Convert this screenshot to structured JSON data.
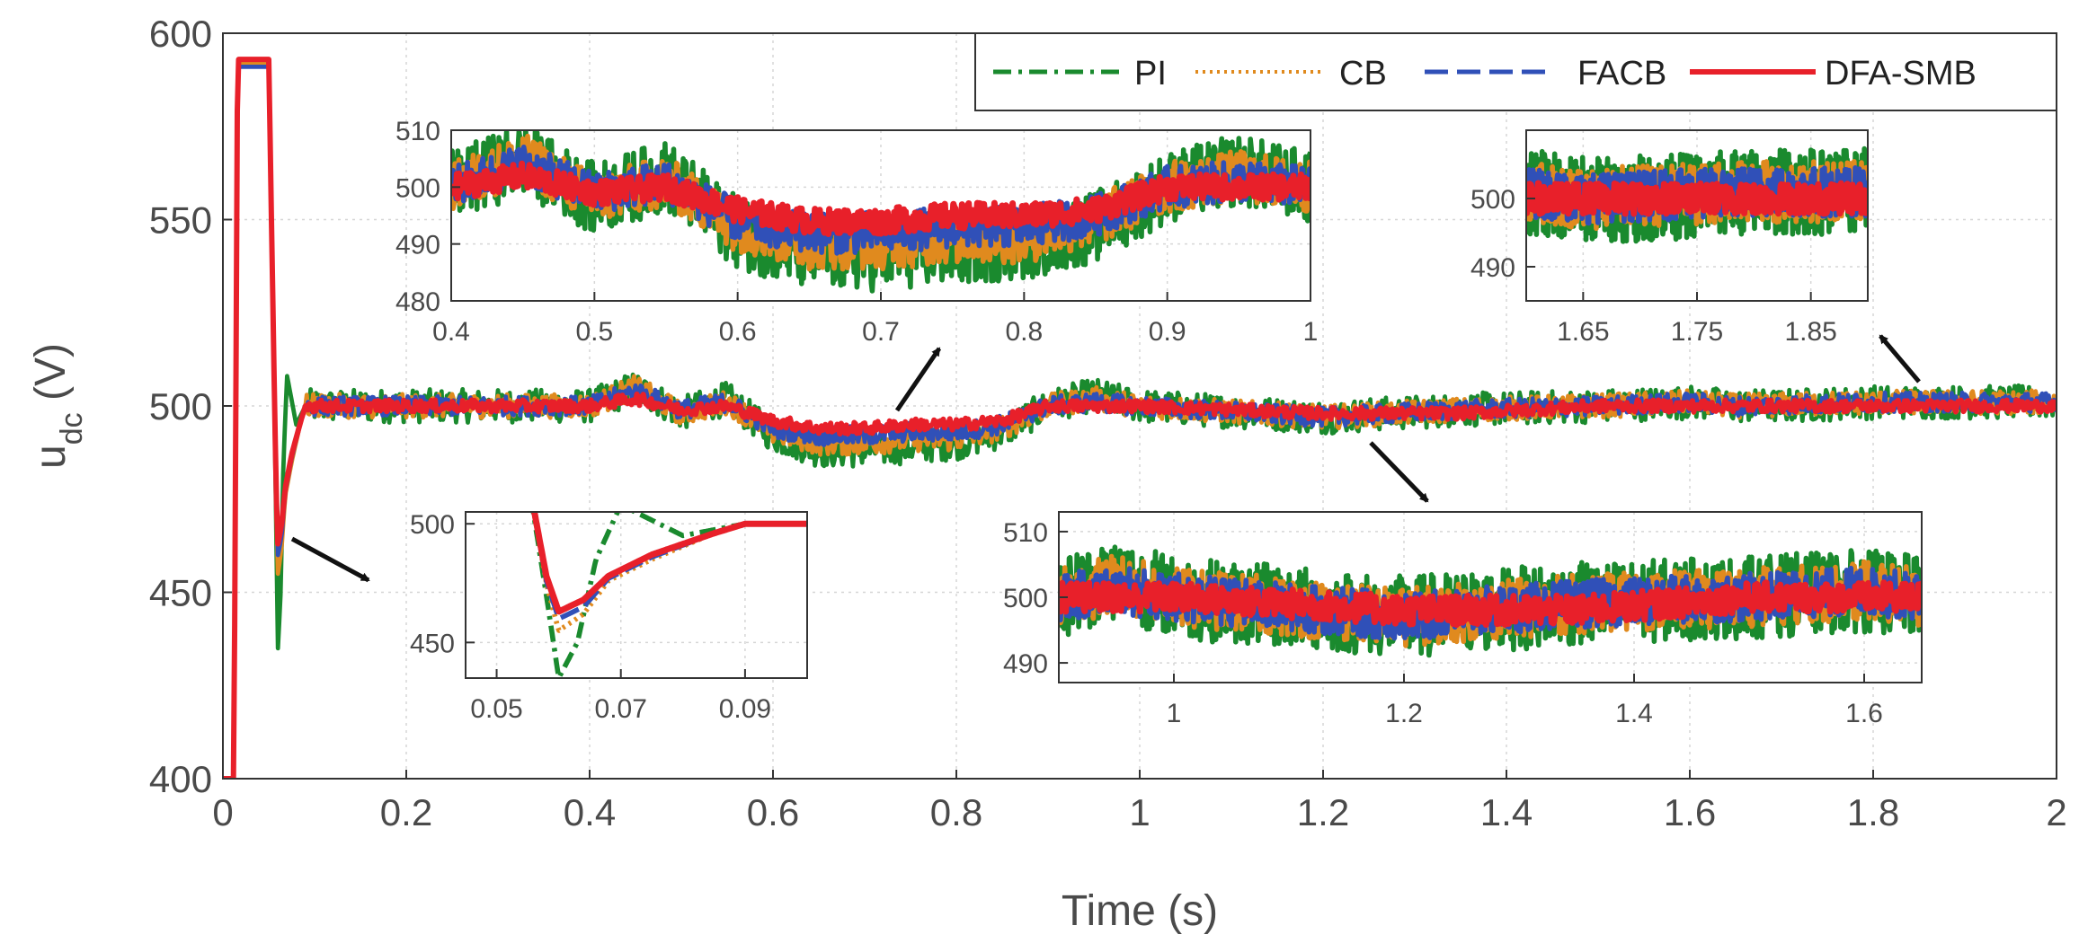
{
  "chart_data": {
    "type": "line",
    "xlabel": "Time (s)",
    "ylabel": "u",
    "ylabel_sub": "dc",
    "ylabel_unit": " (V)",
    "xlim": [
      0,
      2
    ],
    "ylim": [
      400,
      600
    ],
    "xticks": [
      0,
      0.2,
      0.4,
      0.6,
      0.8,
      1,
      1.2,
      1.4,
      1.6,
      1.8,
      2
    ],
    "xtick_labels": [
      "0",
      "0.2",
      "0.4",
      "0.6",
      "0.8",
      "1",
      "1.2",
      "1.4",
      "1.6",
      "1.8",
      "2"
    ],
    "yticks": [
      400,
      450,
      500,
      550,
      600
    ],
    "ytick_labels": [
      "400",
      "450",
      "500",
      "550",
      "600"
    ],
    "grid": true,
    "legend_position": "top-right",
    "colors": {
      "PI": "#1a8a2e",
      "CB": "#e08a1e",
      "FACB": "#3050b8",
      "DFA-SMB": "#e8202a"
    },
    "series": [
      {
        "name": "PI",
        "style": "dash-dot",
        "x": [
          0,
          0.012,
          0.016,
          0.05,
          0.055,
          0.058,
          0.06,
          0.063,
          0.066,
          0.07,
          0.08,
          0.09,
          0.2,
          0.4,
          0.45,
          0.5,
          0.55,
          0.6,
          0.65,
          0.7,
          0.75,
          0.8,
          0.85,
          0.9,
          0.95,
          1.0,
          1.2,
          1.35,
          1.5,
          1.6,
          1.65,
          1.7,
          1.8,
          2.0
        ],
        "y": [
          400,
          400,
          592,
          592,
          520,
          470,
          435,
          450,
          485,
          508,
          495,
          500,
          500,
          500,
          505,
          498,
          502,
          492,
          488,
          488,
          489,
          490,
          493,
          500,
          503,
          500,
          497,
          499,
          500,
          501,
          500,
          500,
          501,
          501
        ]
      },
      {
        "name": "CB",
        "style": "dotted",
        "x": [
          0,
          0.012,
          0.016,
          0.05,
          0.055,
          0.058,
          0.06,
          0.064,
          0.068,
          0.075,
          0.085,
          0.09,
          0.2,
          0.4,
          0.45,
          0.5,
          0.55,
          0.6,
          0.65,
          0.7,
          0.75,
          0.8,
          0.85,
          0.9,
          0.95,
          1.0,
          1.2,
          1.35,
          1.5,
          1.6,
          1.65,
          1.8,
          2.0
        ],
        "y": [
          400,
          400,
          592,
          592,
          520,
          475,
          455,
          462,
          476,
          485,
          496,
          500,
          500,
          500,
          505,
          498,
          501,
          493,
          490,
          490,
          491,
          491,
          494,
          500,
          502,
          500,
          497,
          499,
          500,
          501,
          500,
          501,
          501
        ]
      },
      {
        "name": "FACB",
        "style": "dashed",
        "x": [
          0,
          0.012,
          0.016,
          0.05,
          0.055,
          0.058,
          0.06,
          0.064,
          0.068,
          0.075,
          0.085,
          0.09,
          0.2,
          0.4,
          0.45,
          0.5,
          0.55,
          0.6,
          0.65,
          0.7,
          0.75,
          0.8,
          0.85,
          0.9,
          0.95,
          1.0,
          1.2,
          1.35,
          1.5,
          1.6,
          1.65,
          1.8,
          2.0
        ],
        "y": [
          400,
          400,
          591,
          591,
          520,
          476,
          460,
          465,
          477,
          486,
          496,
          500,
          500,
          500,
          504,
          499,
          501,
          494,
          492,
          492,
          493,
          493,
          495,
          500,
          501,
          500,
          497,
          499,
          500,
          501,
          500,
          501,
          501
        ]
      },
      {
        "name": "DFA-SMB",
        "style": "solid",
        "x": [
          0,
          0.012,
          0.016,
          0.05,
          0.055,
          0.058,
          0.06,
          0.064,
          0.068,
          0.075,
          0.085,
          0.09,
          0.2,
          0.4,
          0.45,
          0.5,
          0.55,
          0.6,
          0.65,
          0.7,
          0.75,
          0.8,
          0.85,
          0.9,
          0.95,
          1.0,
          1.2,
          1.35,
          1.5,
          1.6,
          1.65,
          1.8,
          2.0
        ],
        "y": [
          400,
          400,
          593,
          593,
          520,
          478,
          463,
          468,
          478,
          487,
          496,
          500,
          500,
          500,
          502,
          499,
          500,
          496,
          494,
          494,
          495,
          495,
          496,
          500,
          500,
          500,
          498,
          498,
          500,
          500,
          500,
          500,
          500
        ]
      }
    ],
    "insets": [
      {
        "xlim": [
          0.4,
          1.0
        ],
        "ylim": [
          480,
          510
        ],
        "xtick_labels": [
          "0.4",
          "0.5",
          "0.6",
          "0.7",
          "0.8",
          "0.9",
          "1"
        ],
        "ytick_labels": [
          "480",
          "490",
          "500",
          "510"
        ]
      },
      {
        "xlim": [
          1.6,
          1.9
        ],
        "ylim": [
          485,
          510
        ],
        "xtick_labels": [
          "1.65",
          "1.75",
          "1.85"
        ],
        "ytick_labels": [
          "490",
          "500"
        ]
      },
      {
        "xlim": [
          0.045,
          0.1
        ],
        "ylim": [
          435,
          505
        ],
        "xtick_labels": [
          "0.05",
          "0.07",
          "0.09"
        ],
        "ytick_labels": [
          "450",
          "500"
        ]
      },
      {
        "xlim": [
          0.9,
          1.65
        ],
        "ylim": [
          487,
          513
        ],
        "xtick_labels": [
          "1",
          "1.2",
          "1.4",
          "1.6"
        ],
        "ytick_labels": [
          "490",
          "500",
          "510"
        ]
      }
    ]
  }
}
